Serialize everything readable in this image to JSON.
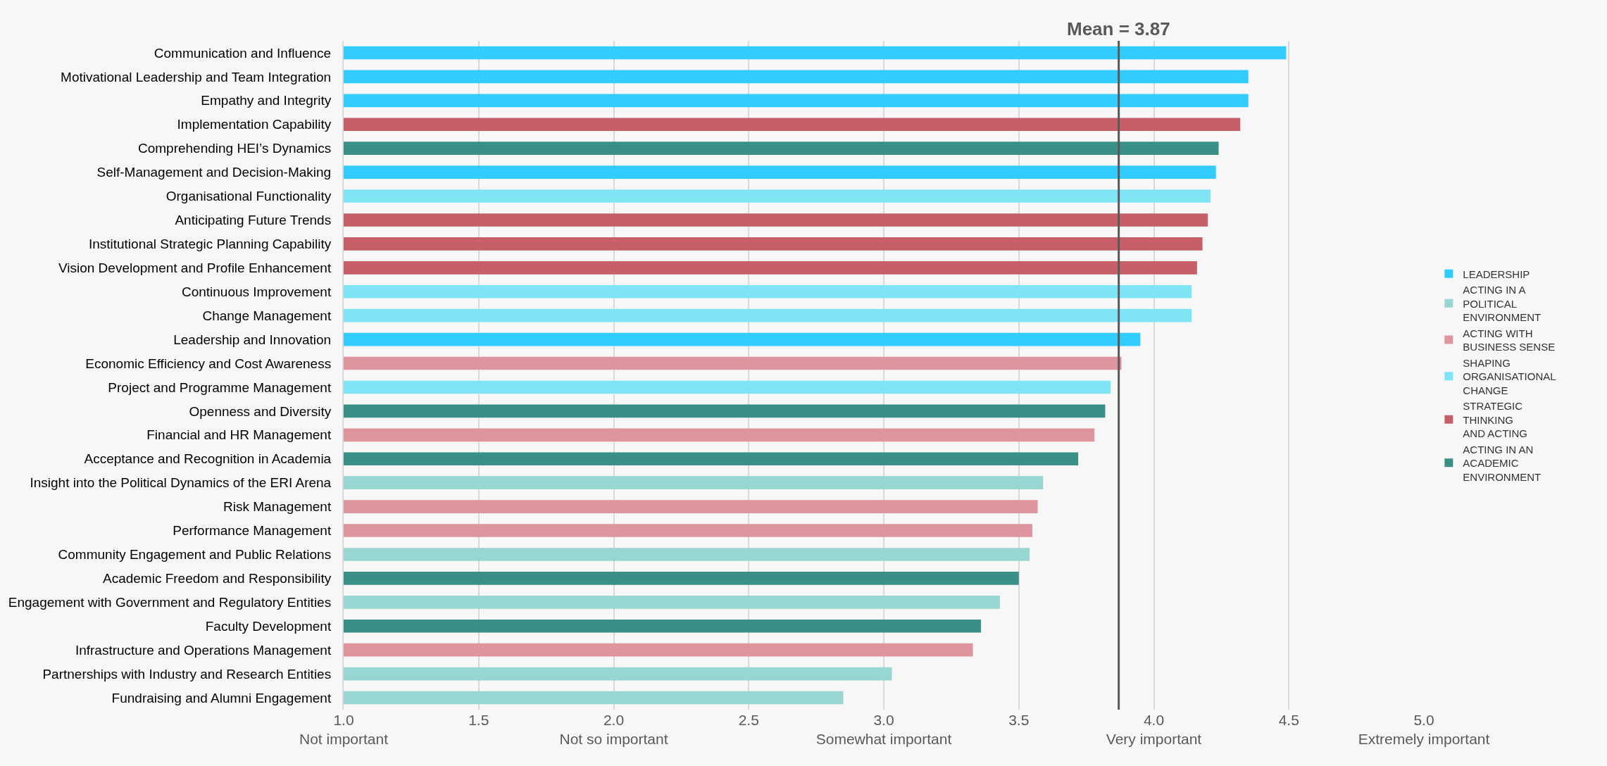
{
  "chart_data": {
    "type": "bar",
    "orientation": "horizontal",
    "categories": [
      "Communication and Influence",
      "Motivational Leadership and Team Integration",
      "Empathy and Integrity",
      "Implementation Capability",
      "Comprehending HEI’s Dynamics",
      "Self-Management and Decision-Making",
      "Organisational Functionality",
      "Anticipating Future Trends",
      "Institutional Strategic Planning Capability",
      "Vision Development and Profile Enhancement",
      "Continuous Improvement",
      "Change Management",
      "Leadership and Innovation",
      "Economic Efficiency and Cost Awareness",
      "Project and Programme Management",
      "Openness and Diversity",
      "Financial and HR Management",
      "Acceptance and Recognition in Academia",
      "Insight into the Political Dynamics of the ERI Arena",
      "Risk Management",
      "Performance Management",
      "Community Engagement and Public Relations",
      "Academic Freedom and Responsibility",
      "Engagement with Government and Regulatory Entities",
      "Faculty Development",
      "Infrastructure and Operations Management",
      "Partnerships with Industry and Research Entities",
      "Fundraising and Alumni Engagement"
    ],
    "series": [
      {
        "name": "LEADERSHIP",
        "color": "#33ccff",
        "values": [
          4.49,
          4.35,
          4.35,
          null,
          null,
          4.23,
          null,
          null,
          null,
          null,
          null,
          null,
          3.95,
          null,
          null,
          null,
          null,
          null,
          null,
          null,
          null,
          null,
          null,
          null,
          null,
          null,
          null,
          null
        ]
      },
      {
        "name": "ACTING IN A\nPOLITICAL\nENVIRONMENT",
        "color": "#98d6d1",
        "values": [
          null,
          null,
          null,
          null,
          null,
          null,
          null,
          null,
          null,
          null,
          null,
          null,
          null,
          null,
          null,
          null,
          null,
          null,
          3.59,
          null,
          null,
          3.54,
          null,
          3.43,
          null,
          null,
          3.03,
          2.85
        ]
      },
      {
        "name": "ACTING WITH\nBUSINESS SENSE",
        "color": "#df959d",
        "values": [
          null,
          null,
          null,
          null,
          null,
          null,
          null,
          null,
          null,
          null,
          null,
          null,
          null,
          3.88,
          null,
          null,
          3.78,
          null,
          null,
          3.57,
          3.55,
          null,
          null,
          null,
          null,
          3.33,
          null,
          null
        ]
      },
      {
        "name": "SHAPING\nORGANISATIONAL\nCHANGE",
        "color": "#7fe5f4",
        "values": [
          null,
          null,
          null,
          null,
          null,
          null,
          4.21,
          null,
          null,
          null,
          4.14,
          4.14,
          null,
          null,
          3.84,
          null,
          null,
          null,
          null,
          null,
          null,
          null,
          null,
          null,
          null,
          null,
          null,
          null
        ]
      },
      {
        "name": "STRATEGIC\nTHINKING\nAND ACTING",
        "color": "#c75f69",
        "values": [
          null,
          null,
          null,
          4.32,
          null,
          null,
          null,
          4.2,
          4.18,
          4.16,
          null,
          null,
          null,
          null,
          null,
          null,
          null,
          null,
          null,
          null,
          null,
          null,
          null,
          null,
          null,
          null,
          null,
          null
        ]
      },
      {
        "name": "ACTING IN AN\nACADEMIC\nENVIRONMENT",
        "color": "#3a9087",
        "values": [
          null,
          null,
          null,
          null,
          4.24,
          null,
          null,
          null,
          null,
          null,
          null,
          null,
          null,
          null,
          null,
          3.82,
          null,
          3.72,
          null,
          null,
          null,
          null,
          3.5,
          null,
          3.36,
          null,
          null,
          null
        ]
      }
    ],
    "xlim": [
      1,
      5
    ],
    "xticks": [
      {
        "value": 1,
        "label": "1.0\nNot important"
      },
      {
        "value": 1.5,
        "label": "1.5"
      },
      {
        "value": 2,
        "label": "2.0\nNot so important"
      },
      {
        "value": 2.5,
        "label": "2.5"
      },
      {
        "value": 3,
        "label": "3.0\nSomewhat important"
      },
      {
        "value": 3.5,
        "label": "3.5"
      },
      {
        "value": 4,
        "label": "4.0\nVery important"
      },
      {
        "value": 4.5,
        "label": "4.5"
      },
      {
        "value": 5,
        "label": "5.0\nExtremely important"
      }
    ],
    "ref_lines": [
      {
        "axis": "x",
        "value": 3.87,
        "label": "Mean = 3.87",
        "color": "#595959"
      }
    ],
    "grid": "x",
    "legend": "right"
  }
}
